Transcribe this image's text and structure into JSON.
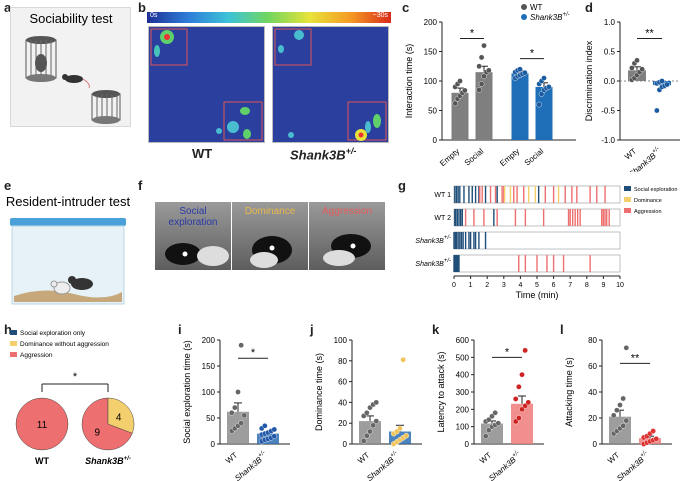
{
  "panels": {
    "a": {
      "letter": "a",
      "title": "Sociability test"
    },
    "b": {
      "letter": "b",
      "scale_start": "0s",
      "scale_end": "~30s",
      "label_wt": "WT",
      "label_shank": "Shank3B",
      "label_shank_sup": "+/-"
    },
    "e": {
      "letter": "e",
      "title": "Resident-intruder test"
    },
    "f": {
      "letter": "f",
      "labels": [
        "Social exploration",
        "Dominance",
        "Aggression"
      ],
      "label_colors": [
        "#2b3aa6",
        "#e9b94b",
        "#e55b5b"
      ]
    },
    "g": {
      "letter": "g"
    }
  },
  "colors": {
    "wt": "#7f7f7f",
    "shank": "#1f6fb8",
    "social": "#1f4e79",
    "dominance": "#f4cf6e",
    "aggression": "#ee6f6f"
  },
  "chart_data": [
    {
      "id": "c",
      "type": "bar",
      "letter": "c",
      "ylabel": "Interaction time (s)",
      "ylim": [
        0,
        200
      ],
      "yticks": [
        0,
        50,
        100,
        150,
        200
      ],
      "categories": [
        "Empty",
        "Social",
        "Empty",
        "Social"
      ],
      "group_of": [
        "WT",
        "WT",
        "Shank3B+/-",
        "Shank3B+/-"
      ],
      "values": [
        80,
        115,
        113,
        90
      ],
      "errors": [
        8,
        10,
        4,
        7
      ],
      "points": [
        [
          62,
          70,
          75,
          80,
          84,
          90,
          95,
          100
        ],
        [
          85,
          95,
          108,
          115,
          118,
          125,
          140,
          160
        ],
        [
          105,
          108,
          110,
          112,
          114,
          115,
          118,
          120
        ],
        [
          60,
          78,
          85,
          88,
          90,
          95,
          100,
          105
        ]
      ],
      "legend": [
        {
          "name": "WT",
          "sup": ""
        },
        {
          "name": "Shank3B",
          "sup": "+/-"
        }
      ],
      "sig": [
        {
          "text": "*",
          "from": 0,
          "to": 1,
          "y": 172
        },
        {
          "text": "*",
          "from": 2,
          "to": 3,
          "y": 138
        }
      ]
    },
    {
      "id": "d",
      "type": "bar",
      "letter": "d",
      "ylabel": "Discrimination index",
      "ylim": [
        -1.0,
        1.0
      ],
      "yticks": [
        -1.0,
        -0.5,
        0.0,
        0.5,
        1.0
      ],
      "categories": [
        "WT",
        "Shank3B+/-"
      ],
      "tick_text": [
        "WT",
        "Shank3B"
      ],
      "tick_sup": [
        "",
        "+/-"
      ],
      "values": [
        0.18,
        -0.07
      ],
      "errors": [
        0.06,
        0.05
      ],
      "points": [
        [
          0.02,
          0.05,
          0.1,
          0.15,
          0.2,
          0.22,
          0.3,
          0.35
        ],
        [
          -0.5,
          -0.15,
          -0.1,
          -0.08,
          -0.06,
          -0.04,
          -0.02,
          0.0
        ]
      ],
      "sig": [
        {
          "text": "**",
          "from": 0,
          "to": 1,
          "y": 0.72
        }
      ]
    },
    {
      "id": "g",
      "type": "raster",
      "xlabel": "Time (min)",
      "xlim": [
        0,
        10
      ],
      "xticks": [
        0,
        1,
        2,
        3,
        4,
        5,
        6,
        7,
        8,
        9,
        10
      ],
      "rows": [
        {
          "name": "WT 1",
          "sup": ""
        },
        {
          "name": "WT 2",
          "sup": ""
        },
        {
          "name": "Shank3B",
          "sup": "+/-",
          "suffix": " 1"
        },
        {
          "name": "Shank3B",
          "sup": "+/-",
          "suffix": " 2"
        }
      ],
      "legend": [
        "Social exploration",
        "Dominance",
        "Aggression"
      ],
      "events": [
        [
          [
            0.05,
            0
          ],
          [
            0.15,
            0
          ],
          [
            0.25,
            0
          ],
          [
            0.35,
            0
          ],
          [
            0.6,
            0
          ],
          [
            0.9,
            0
          ],
          [
            1.1,
            0
          ],
          [
            1.3,
            0
          ],
          [
            1.5,
            0
          ],
          [
            1.55,
            2
          ],
          [
            1.7,
            2
          ],
          [
            1.9,
            0
          ],
          [
            2.2,
            2
          ],
          [
            2.5,
            2
          ],
          [
            2.6,
            0
          ],
          [
            2.9,
            2
          ],
          [
            3.0,
            2
          ],
          [
            3.05,
            1
          ],
          [
            3.4,
            1
          ],
          [
            3.6,
            2
          ],
          [
            3.8,
            2
          ],
          [
            4.2,
            2
          ],
          [
            4.5,
            1
          ],
          [
            4.9,
            1
          ],
          [
            5.1,
            0
          ],
          [
            5.5,
            2
          ],
          [
            6.0,
            2
          ],
          [
            6.3,
            1
          ],
          [
            6.7,
            2
          ],
          [
            7.1,
            2
          ],
          [
            7.4,
            2
          ],
          [
            8.2,
            2
          ],
          [
            8.6,
            2
          ],
          [
            9.1,
            2
          ]
        ],
        [
          [
            0.05,
            0
          ],
          [
            0.1,
            0
          ],
          [
            0.2,
            0
          ],
          [
            0.3,
            0
          ],
          [
            0.4,
            0
          ],
          [
            0.5,
            0
          ],
          [
            0.7,
            2
          ],
          [
            1.2,
            2
          ],
          [
            1.8,
            2
          ],
          [
            2.4,
            0
          ],
          [
            2.6,
            2
          ],
          [
            3.7,
            2
          ],
          [
            4.3,
            2
          ],
          [
            5.4,
            2
          ],
          [
            6.9,
            2
          ],
          [
            7.0,
            2
          ],
          [
            7.15,
            2
          ],
          [
            7.3,
            2
          ],
          [
            7.45,
            2
          ],
          [
            7.6,
            2
          ],
          [
            8.9,
            2
          ],
          [
            9.0,
            2
          ],
          [
            9.1,
            2
          ],
          [
            9.2,
            2
          ],
          [
            9.35,
            2
          ]
        ],
        [
          [
            0.0,
            0
          ],
          [
            0.08,
            0
          ],
          [
            0.15,
            0
          ],
          [
            0.25,
            0
          ],
          [
            0.35,
            0
          ],
          [
            0.45,
            0
          ],
          [
            0.55,
            0
          ],
          [
            0.7,
            0
          ],
          [
            0.9,
            0
          ],
          [
            1.0,
            0
          ],
          [
            1.2,
            0
          ],
          [
            1.3,
            0
          ],
          [
            1.5,
            0
          ],
          [
            1.9,
            0
          ]
        ],
        [
          [
            0.0,
            0
          ],
          [
            0.05,
            0
          ],
          [
            0.1,
            0
          ],
          [
            0.15,
            0
          ],
          [
            0.2,
            0
          ],
          [
            0.25,
            0
          ],
          [
            0.3,
            0
          ],
          [
            3.9,
            2
          ],
          [
            4.3,
            2
          ],
          [
            5.0,
            2
          ],
          [
            5.6,
            2
          ],
          [
            6.0,
            2
          ],
          [
            6.6,
            2
          ],
          [
            8.2,
            2
          ]
        ]
      ]
    },
    {
      "id": "h",
      "type": "pie",
      "letter": "h",
      "legend": [
        "Social exploration only",
        "Dominance without aggression",
        "Aggression"
      ],
      "pies": [
        {
          "label": "WT",
          "sup": "",
          "slices": [
            {
              "name": "Aggression",
              "value": 11
            }
          ]
        },
        {
          "label": "Shank3B",
          "sup": "+/-",
          "slices": [
            {
              "name": "Aggression",
              "value": 9
            },
            {
              "name": "Dominance without aggression",
              "value": 4
            }
          ]
        }
      ],
      "sig": "*"
    },
    {
      "id": "i",
      "type": "bar",
      "letter": "i",
      "ylabel": "Social exploration time (s)",
      "ylim": [
        0,
        200
      ],
      "yticks": [
        0,
        50,
        100,
        150,
        200
      ],
      "categories": [
        "WT",
        "Shank3B+/-"
      ],
      "tick_text": [
        "WT",
        "Shank3B"
      ],
      "tick_sup": [
        "",
        "+/-"
      ],
      "values": [
        62,
        20
      ],
      "errors": [
        17,
        4
      ],
      "points": [
        [
          25,
          30,
          35,
          40,
          55,
          60,
          70,
          100,
          190
        ],
        [
          5,
          8,
          10,
          12,
          15,
          18,
          20,
          22,
          25,
          28,
          30,
          35
        ]
      ],
      "sig": [
        {
          "text": "*",
          "from": 0,
          "to": 1,
          "y": 165
        }
      ]
    },
    {
      "id": "j",
      "type": "bar",
      "letter": "j",
      "ylabel": "Dominance time (s)",
      "ylim": [
        0,
        100
      ],
      "yticks": [
        0,
        20,
        40,
        60,
        80,
        100
      ],
      "categories": [
        "WT",
        "Shank3B+/-"
      ],
      "tick_text": [
        "WT",
        "Shank3B"
      ],
      "tick_sup": [
        "",
        "+/-"
      ],
      "values": [
        22,
        12
      ],
      "errors": [
        5,
        6
      ],
      "points": [
        [
          3,
          8,
          12,
          18,
          22,
          27,
          30,
          35,
          38,
          40
        ],
        [
          0,
          2,
          4,
          6,
          8,
          10,
          12,
          15,
          81
        ]
      ],
      "sig": []
    },
    {
      "id": "k",
      "type": "bar",
      "letter": "k",
      "ylabel": "Latency to attack (s)",
      "ylim": [
        0,
        600
      ],
      "yticks": [
        0,
        100,
        200,
        300,
        400,
        500,
        600
      ],
      "categories": [
        "WT",
        "Shank3B+/-"
      ],
      "tick_text": [
        "WT",
        "Shank3B"
      ],
      "tick_sup": [
        "",
        "+/-"
      ],
      "values": [
        118,
        232
      ],
      "errors": [
        15,
        45
      ],
      "points": [
        [
          45,
          80,
          100,
          110,
          120,
          130,
          140,
          160,
          180
        ],
        [
          130,
          150,
          200,
          220,
          240,
          260,
          330,
          400,
          540
        ]
      ],
      "sig": [
        {
          "text": "*",
          "from": 0,
          "to": 1,
          "y": 500
        }
      ]
    },
    {
      "id": "l",
      "type": "bar",
      "letter": "l",
      "ylabel": "Attacking time (s)",
      "ylim": [
        0,
        80
      ],
      "yticks": [
        0,
        20,
        40,
        60,
        80
      ],
      "categories": [
        "WT",
        "Shank3B+/-"
      ],
      "tick_text": [
        "WT",
        "Shank3B"
      ],
      "tick_sup": [
        "",
        "+/-"
      ],
      "values": [
        21,
        4.5
      ],
      "errors": [
        5,
        1.5
      ],
      "points": [
        [
          8,
          10,
          12,
          14,
          18,
          22,
          26,
          30,
          35,
          74
        ],
        [
          0,
          1,
          2,
          3,
          4,
          5,
          6,
          8,
          10
        ]
      ],
      "sig": [
        {
          "text": "**",
          "from": 0,
          "to": 1,
          "y": 62
        }
      ]
    }
  ]
}
